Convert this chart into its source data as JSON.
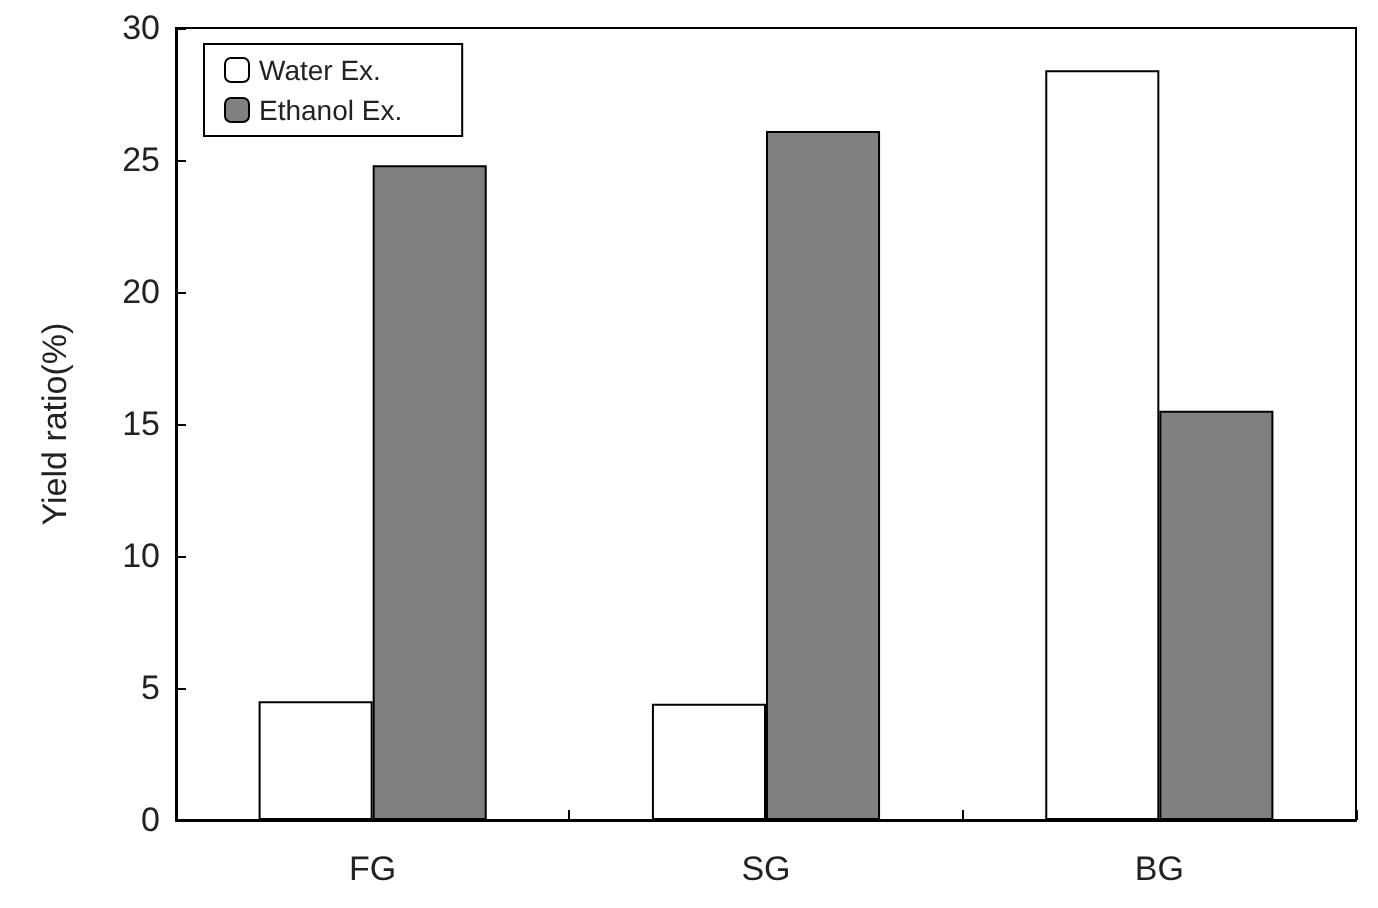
{
  "chart_data": {
    "type": "bar",
    "ylabel": "Yield ratio(%)",
    "categories": [
      "FG",
      "SG",
      "BG"
    ],
    "series": [
      {
        "name": "Water Ex.",
        "color": "#ffffff",
        "values": [
          4.5,
          4.4,
          28.4
        ]
      },
      {
        "name": "Ethanol Ex.",
        "color": "#808080",
        "values": [
          24.8,
          26.1,
          15.5
        ]
      }
    ],
    "ylim": [
      0,
      30
    ],
    "yticks": [
      0,
      5,
      10,
      15,
      20,
      25,
      30
    ],
    "grid": false,
    "legend": "top left"
  }
}
